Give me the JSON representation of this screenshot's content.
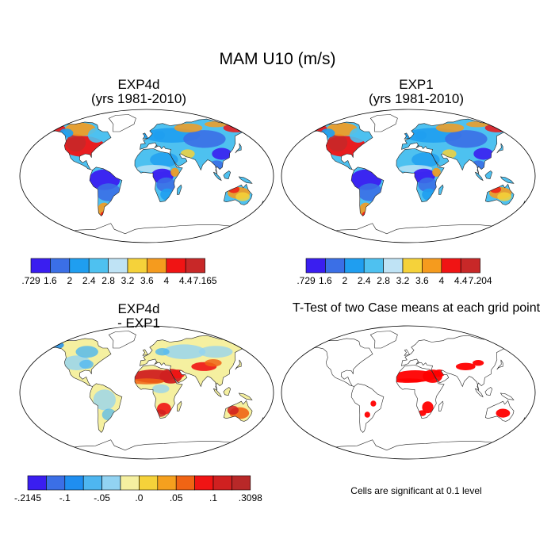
{
  "main_title": "MAM U10 (m/s)",
  "panels": {
    "top_left": {
      "title_line1": "EXP4d",
      "title_line2": "(yrs 1981-2010)"
    },
    "top_right": {
      "title_line1": "EXP1",
      "title_line2": "(yrs 1981-2010)"
    },
    "bottom_left": {
      "title_line1": "EXP4d",
      "title_line2": "- EXP1"
    },
    "bottom_right": {
      "title_line1": "T-Test of two Case means at each grid point",
      "note": "Cells are significant at 0.1 level"
    }
  },
  "chart_data": [
    {
      "type": "heatmap",
      "title": "EXP4d (yrs 1981-2010)",
      "colorbar": {
        "labels": [
          ".729",
          "1.6",
          "2",
          "2.4",
          "2.8",
          "3.2",
          "3.6",
          "4",
          "4.4",
          "7.165"
        ],
        "colors": [
          "#3a1ef0",
          "#3b6fe6",
          "#1f9ef0",
          "#4ec1f0",
          "#bfe3f5",
          "#f5d23a",
          "#f59b1e",
          "#f01414",
          "#c82828"
        ]
      }
    },
    {
      "type": "heatmap",
      "title": "EXP1 (yrs 1981-2010)",
      "colorbar": {
        "labels": [
          ".729",
          "1.6",
          "2",
          "2.4",
          "2.8",
          "3.2",
          "3.6",
          "4",
          "4.4",
          "7.204"
        ],
        "colors": [
          "#3a1ef0",
          "#3b6fe6",
          "#1f9ef0",
          "#4ec1f0",
          "#bfe3f5",
          "#f5d23a",
          "#f59b1e",
          "#f01414",
          "#c82828"
        ]
      }
    },
    {
      "type": "heatmap",
      "title": "EXP4d - EXP1",
      "colorbar": {
        "labels": [
          "-.2145",
          "-.1",
          "-.05",
          ".0",
          ".05",
          ".1",
          ".3098"
        ],
        "label_slots": [
          0,
          2,
          4,
          6,
          8,
          10,
          12
        ],
        "colors": [
          "#3a1ef0",
          "#3b6fe6",
          "#1f8ef0",
          "#4eb6f0",
          "#92d3f2",
          "#f5f0a0",
          "#f5d23a",
          "#f5a01e",
          "#f06414",
          "#f01414",
          "#d02020",
          "#b82828"
        ]
      }
    },
    {
      "type": "heatmap",
      "title": "T-Test of two Case means at each grid point",
      "annotation": "Cells are significant at 0.1 level",
      "colors": [
        "#ff0000"
      ]
    }
  ]
}
